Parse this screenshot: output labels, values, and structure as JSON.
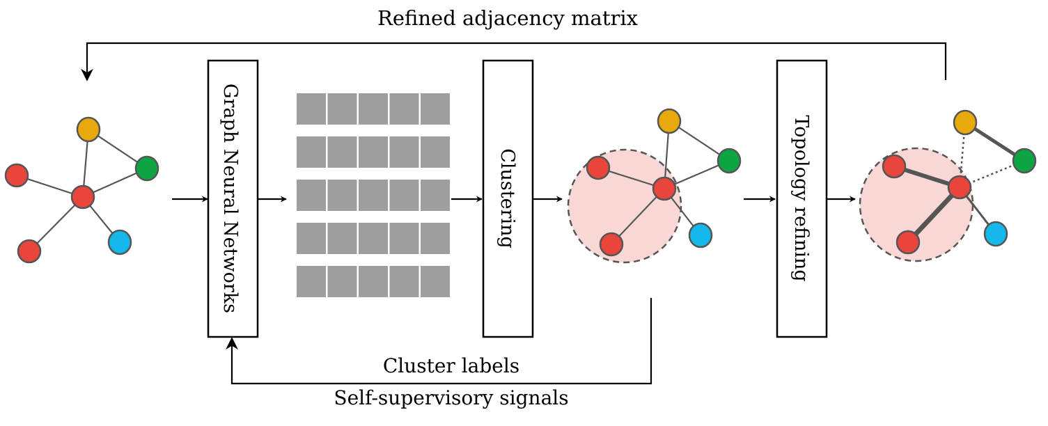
{
  "labels": {
    "refined_adjacency": "Refined adjacency matrix",
    "gnn": "Graph Neural Networks",
    "clustering": "Clustering",
    "topology_refining": "Topology refining",
    "cluster_labels": "Cluster labels",
    "self_supervisory": "Self-supervisory signals"
  },
  "colors": {
    "red": "#e8453c",
    "yellow": "#e8a90c",
    "green": "#0da544",
    "cyan": "#14b8ea",
    "embedding_cell": "#9e9e9e",
    "cluster_fill": "#f8d7d5",
    "edge": "#555555"
  },
  "embedding_matrix": {
    "rows": 5,
    "cols": 5
  }
}
